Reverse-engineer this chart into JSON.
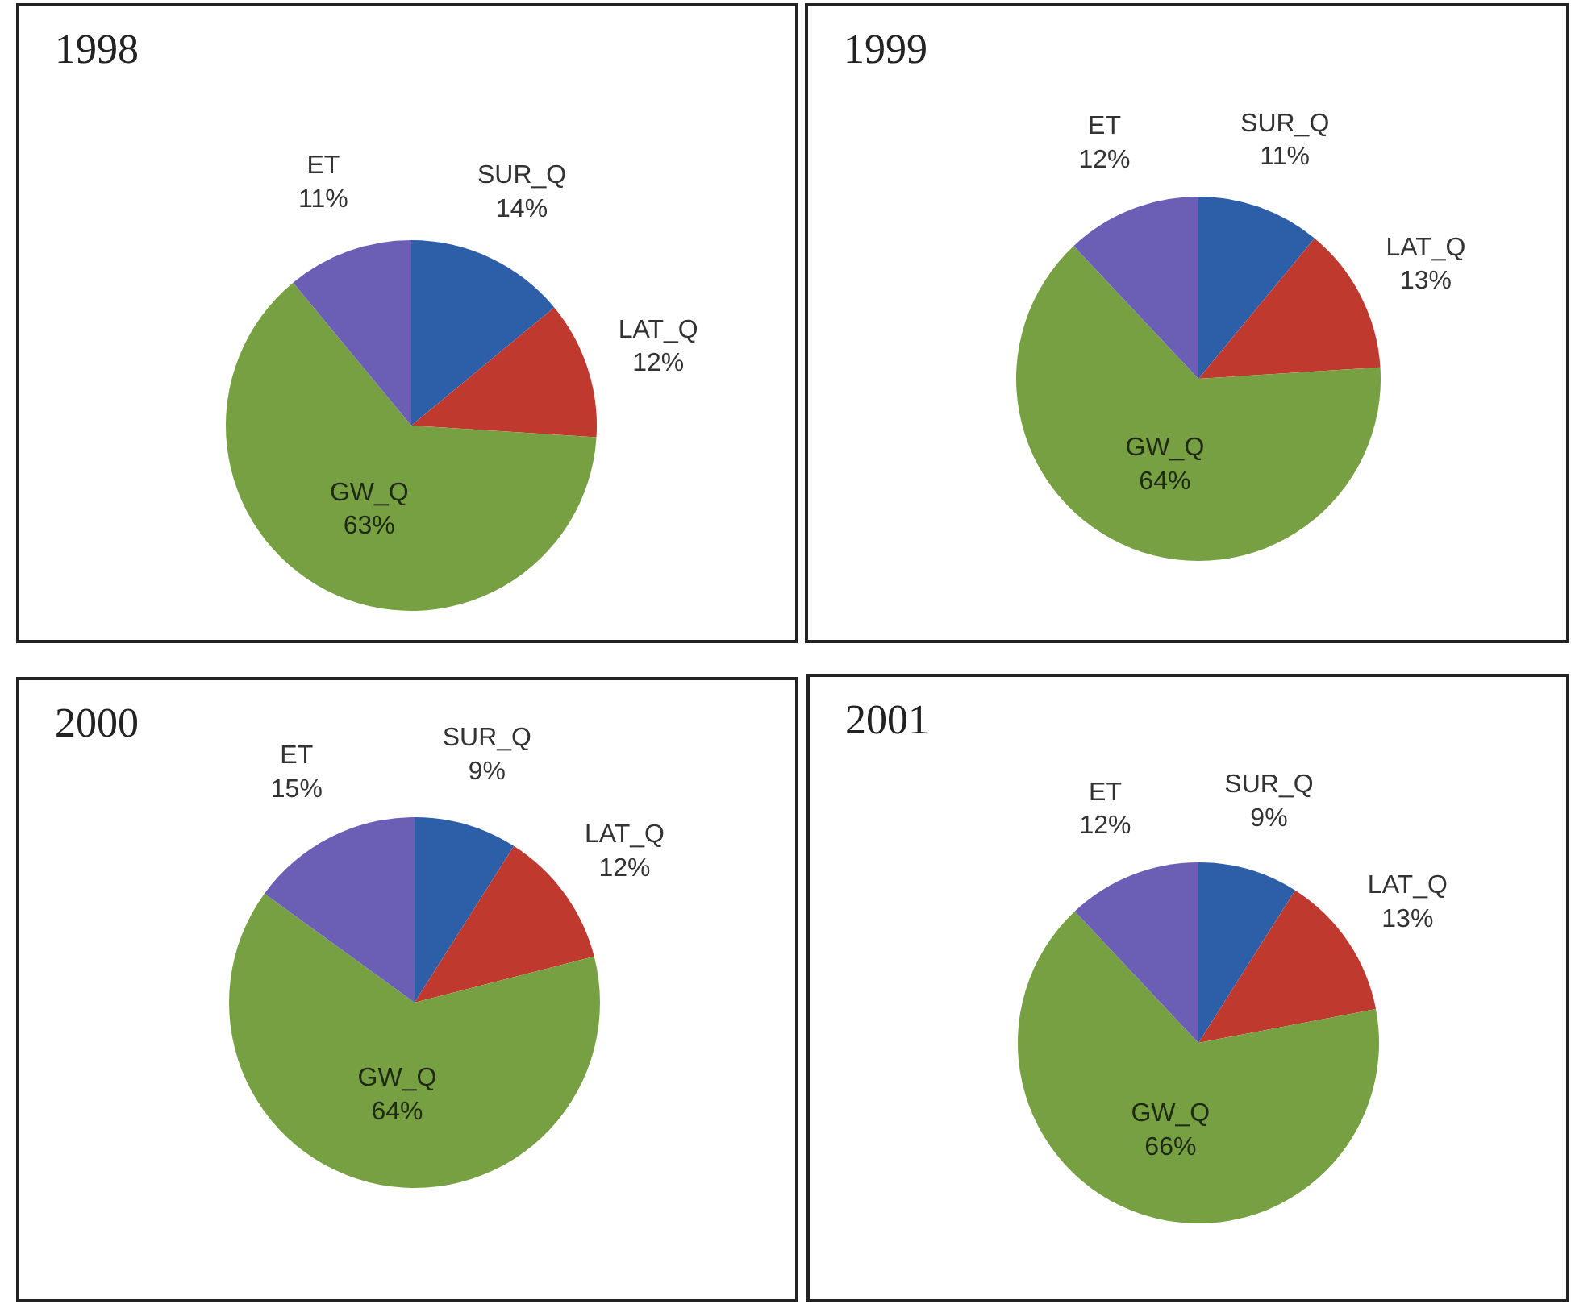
{
  "chart_data": [
    {
      "type": "pie",
      "title": "1998",
      "categories": [
        "SUR_Q",
        "LAT_Q",
        "GW_Q",
        "ET"
      ],
      "values": [
        14,
        12,
        63,
        11
      ],
      "colors": [
        "#2c5fa8",
        "#c0392e",
        "#77a043",
        "#6a5fb5"
      ],
      "value_labels": [
        "14%",
        "12%",
        "63%",
        "11%"
      ]
    },
    {
      "type": "pie",
      "title": "1999",
      "categories": [
        "SUR_Q",
        "LAT_Q",
        "GW_Q",
        "ET"
      ],
      "values": [
        11,
        13,
        64,
        12
      ],
      "colors": [
        "#2c5fa8",
        "#c0392e",
        "#77a043",
        "#6a5fb5"
      ],
      "value_labels": [
        "11%",
        "13%",
        "64%",
        "12%"
      ]
    },
    {
      "type": "pie",
      "title": "2000",
      "categories": [
        "SUR_Q",
        "LAT_Q",
        "GW_Q",
        "ET"
      ],
      "values": [
        9,
        12,
        64,
        15
      ],
      "colors": [
        "#2c5fa8",
        "#c0392e",
        "#77a043",
        "#6a5fb5"
      ],
      "value_labels": [
        "9%",
        "12%",
        "64%",
        "15%"
      ]
    },
    {
      "type": "pie",
      "title": "2001",
      "categories": [
        "SUR_Q",
        "LAT_Q",
        "GW_Q",
        "ET"
      ],
      "values": [
        9,
        13,
        66,
        12
      ],
      "colors": [
        "#2c5fa8",
        "#c0392e",
        "#77a043",
        "#6a5fb5"
      ],
      "value_labels": [
        "9%",
        "13%",
        "66%",
        "12%"
      ]
    }
  ]
}
